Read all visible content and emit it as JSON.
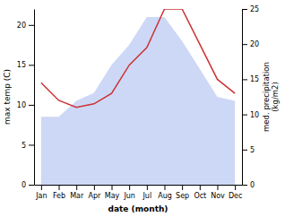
{
  "chart_data": {
    "type": "line",
    "categories": [
      "Jan",
      "Feb",
      "Mar",
      "Apr",
      "May",
      "Jun",
      "Jul",
      "Aug",
      "Sep",
      "Oct",
      "Nov",
      "Dec"
    ],
    "xlabel": "date (month)",
    "ylabel": "max temp (C)",
    "y2label": "med. precipitation\n(kg/m2)",
    "ylim": [
      0,
      22
    ],
    "yticks": [
      0,
      5,
      10,
      15,
      20
    ],
    "y2lim": [
      0,
      25
    ],
    "y2ticks": [
      0,
      5,
      10,
      15,
      20,
      25
    ],
    "grid": false,
    "series": [
      {
        "type": "area",
        "color": "#c8d4f5",
        "values": [
          8.5,
          8.5,
          10.5,
          11.5,
          15.0,
          17.5,
          21.0,
          21.0,
          18.0,
          14.5,
          11.0,
          10.5
        ]
      },
      {
        "type": "line",
        "axis": "y2",
        "color": "#cc3333",
        "values": [
          14.5,
          12.0,
          11.0,
          11.5,
          13.0,
          17.0,
          19.5,
          25.0,
          25.0,
          20.0,
          15.0,
          13.0
        ]
      }
    ]
  }
}
